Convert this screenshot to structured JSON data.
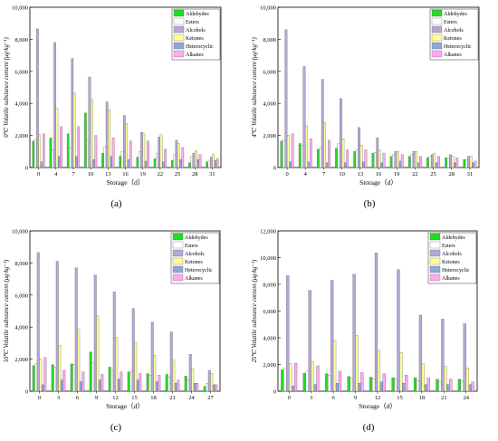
{
  "figure": {
    "series_names": [
      "Aldehydes",
      "Esters",
      "Alcohols",
      "Ketones",
      "Heterocyclic",
      "Alkanes"
    ],
    "colors": {
      "Aldehydes": "#22dd22",
      "Esters": "#ffffff",
      "Alcohols": "#b5a8d8",
      "Ketones": "#ffff99",
      "Heterocyclic": "#8fa8dc",
      "Alkanes": "#ffaaee"
    }
  },
  "chart_data": [
    {
      "type": "bar",
      "panel_label": "(a)",
      "xlabel": "Storage（d）",
      "ylabel": "0℃ Volatile substance content (μg·kg⁻¹)",
      "ylim": [
        0,
        10000
      ],
      "yticks": [
        "0",
        "2,000",
        "4,000",
        "6,000",
        "8,000",
        "10,000"
      ],
      "categories": [
        "0",
        "4",
        "7",
        "10",
        "13",
        "16",
        "19",
        "22",
        "25",
        "28",
        "31"
      ],
      "series": [
        {
          "name": "Aldehydes",
          "values": [
            1650,
            1850,
            2100,
            3400,
            900,
            700,
            650,
            550,
            450,
            300,
            350
          ]
        },
        {
          "name": "Esters",
          "values": [
            1750,
            1100,
            1200,
            1700,
            1300,
            1000,
            1000,
            900,
            800,
            700,
            400
          ]
        },
        {
          "name": "Alcohols",
          "values": [
            8650,
            7800,
            6800,
            5650,
            4100,
            3250,
            2200,
            1900,
            1700,
            900,
            650
          ]
        },
        {
          "name": "Ketones",
          "values": [
            2050,
            3700,
            4650,
            4250,
            3600,
            2750,
            2100,
            2050,
            1500,
            1050,
            850
          ]
        },
        {
          "name": "Heterocyclic",
          "values": [
            350,
            700,
            700,
            500,
            700,
            500,
            400,
            350,
            500,
            500,
            450
          ]
        },
        {
          "name": "Alkanes",
          "values": [
            2100,
            2550,
            2550,
            2000,
            1850,
            1650,
            1650,
            1150,
            1250,
            800,
            550
          ]
        }
      ]
    },
    {
      "type": "bar",
      "panel_label": "(b)",
      "xlabel": "Storage（d）",
      "ylabel": "4℃ Volatile substance content (μg·kg⁻¹)",
      "ylim": [
        0,
        10000
      ],
      "yticks": [
        "0",
        "2,000",
        "4,000",
        "6,000",
        "8,000",
        "10,000"
      ],
      "categories": [
        "0",
        "4",
        "7",
        "10",
        "13",
        "16",
        "19",
        "22",
        "25",
        "28",
        "31"
      ],
      "series": [
        {
          "name": "Aldehydes",
          "values": [
            1650,
            1500,
            1150,
            1200,
            1000,
            900,
            700,
            700,
            600,
            600,
            500
          ]
        },
        {
          "name": "Esters",
          "values": [
            1700,
            1400,
            1200,
            1500,
            1100,
            950,
            800,
            800,
            700,
            600,
            500
          ]
        },
        {
          "name": "Alcohols",
          "values": [
            8600,
            6300,
            5500,
            4300,
            2500,
            1850,
            1000,
            1000,
            800,
            800,
            700
          ]
        },
        {
          "name": "Ketones",
          "values": [
            2000,
            2600,
            2800,
            1800,
            1400,
            1100,
            1000,
            1000,
            900,
            700,
            700
          ]
        },
        {
          "name": "Heterocyclic",
          "values": [
            350,
            350,
            300,
            300,
            350,
            300,
            400,
            300,
            300,
            300,
            300
          ]
        },
        {
          "name": "Alkanes",
          "values": [
            2100,
            1800,
            1700,
            1100,
            1100,
            900,
            800,
            700,
            700,
            600,
            400
          ]
        }
      ]
    },
    {
      "type": "bar",
      "panel_label": "(c)",
      "xlabel": "Storage（d）",
      "ylabel": "10℃ Volatile substance content (μg·kg⁻¹)",
      "ylim": [
        0,
        10000
      ],
      "yticks": [
        "0",
        "2,000",
        "4,000",
        "6,000",
        "8,000",
        "10,000"
      ],
      "categories": [
        "0",
        "3",
        "6",
        "9",
        "12",
        "15",
        "18",
        "21",
        "24",
        "27"
      ],
      "series": [
        {
          "name": "Aldehydes",
          "values": [
            1600,
            1650,
            1700,
            2450,
            1500,
            1200,
            1100,
            1050,
            950,
            300
          ]
        },
        {
          "name": "Esters",
          "values": [
            1700,
            1500,
            1650,
            1800,
            1300,
            1200,
            1000,
            900,
            700,
            500
          ]
        },
        {
          "name": "Alcohols",
          "values": [
            8650,
            8100,
            7700,
            7250,
            6200,
            5150,
            4300,
            3700,
            2300,
            1300
          ]
        },
        {
          "name": "Ketones",
          "values": [
            2000,
            2850,
            3850,
            4700,
            3350,
            3050,
            2250,
            1950,
            1400,
            1100
          ]
        },
        {
          "name": "Heterocyclic",
          "values": [
            400,
            700,
            600,
            700,
            750,
            700,
            600,
            500,
            500,
            400
          ]
        },
        {
          "name": "Alkanes",
          "values": [
            2100,
            1300,
            1200,
            1050,
            1200,
            1100,
            1000,
            700,
            500,
            400
          ]
        }
      ]
    },
    {
      "type": "bar",
      "panel_label": "(d)",
      "xlabel": "Storage（d）",
      "ylabel": "25℃ Volatile substance content (μg·kg⁻¹)",
      "ylim": [
        0,
        12000
      ],
      "yticks": [
        "0",
        "2,000",
        "4,000",
        "6,000",
        "8,000",
        "10,000",
        "12,000"
      ],
      "categories": [
        "0",
        "3",
        "6",
        "9",
        "12",
        "15",
        "18",
        "21",
        "24"
      ],
      "series": [
        {
          "name": "Aldehydes",
          "values": [
            1600,
            1350,
            1300,
            1100,
            1050,
            1000,
            1000,
            900,
            900
          ]
        },
        {
          "name": "Esters",
          "values": [
            1700,
            1500,
            1200,
            1000,
            900,
            900,
            800,
            700,
            800
          ]
        },
        {
          "name": "Alcohols",
          "values": [
            8650,
            7550,
            8300,
            8750,
            10350,
            9100,
            5700,
            5400,
            5050
          ]
        },
        {
          "name": "Ketones",
          "values": [
            2050,
            2200,
            3800,
            4150,
            3050,
            2900,
            2050,
            1850,
            1750
          ]
        },
        {
          "name": "Heterocyclic",
          "values": [
            400,
            500,
            600,
            600,
            700,
            600,
            500,
            500,
            500
          ]
        },
        {
          "name": "Alkanes",
          "values": [
            2100,
            1900,
            1500,
            1400,
            1300,
            1200,
            1000,
            900,
            700
          ]
        }
      ]
    }
  ]
}
